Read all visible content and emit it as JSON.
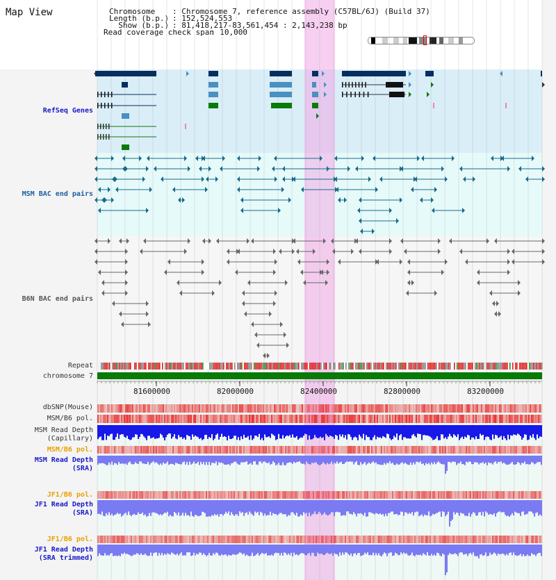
{
  "header": {
    "title": "Map View",
    "chromosome_label": "Chromosome",
    "chromosome_value": ": Chromosome 7, reference assembly (C57BL/6J) (Build 37)",
    "length_label": "Length (b.p.)",
    "length_value": ": 152,524,553",
    "show_label": "  Show (b.p.)",
    "show_value": ": 81,418,217-83,561,454 : 2,143,238 bp",
    "coverage_label": "Read coverage check span",
    "coverage_value": ": 10,000"
  },
  "tracks": {
    "refseq": "RefSeq Genes",
    "msm_bac": "MSM BAC end pairs",
    "b6n_bac": "B6N BAC end pairs",
    "repeat": "Repeat",
    "chromosome": "chromosome 7",
    "dbsnp": "dbSNP(Mouse)",
    "msm_b6_pol": "MSM/B6 pol.",
    "msm_depth_cap_1": "MSM Read Depth",
    "msm_depth_cap_2": "(Capillary)",
    "msm_b6_pol_2": "MSM/B6 pol.",
    "msm_depth_sra_1": "MSM Read Depth",
    "msm_depth_sra_2": "(SRA)",
    "jf1_b6_pol": "JF1/B6 pol.",
    "jf1_depth_sra_1": "JF1 Read Depth",
    "jf1_depth_sra_2": "(SRA)",
    "jf1_b6_pol_2": "JF1/B6 pol.",
    "jf1_depth_trim_1": "JF1 Read Depth",
    "jf1_depth_trim_2": "(SRA trimmed)"
  },
  "axis": {
    "ticks": [
      "81600000",
      "82000000",
      "82400000",
      "82800000",
      "83200000"
    ]
  },
  "colors": {
    "refseq_bg": "#daeef8",
    "msm_bg": "#e6fafa",
    "highlight": "#f6d2f0",
    "gene_dark": "#062e5e",
    "gene_mid": "#4a90c0",
    "gene_green": "#0a7a0a",
    "chrom_green": "#087a08",
    "depth_blue": "#1818e8",
    "depth_light": "#7a7af2",
    "pol_red": "#f06060"
  }
}
